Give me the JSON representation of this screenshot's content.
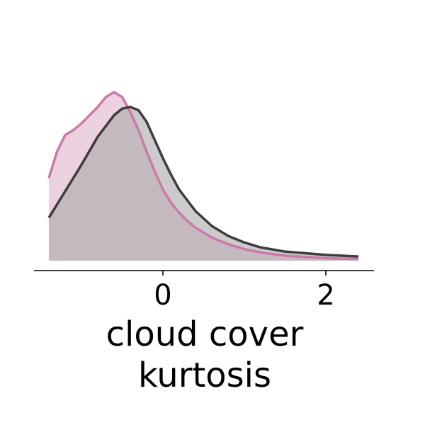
{
  "chart_data": {
    "type": "area",
    "xlabel": "cloud cover\nkurtosis",
    "ylabel": "",
    "xlim": [
      -1.6,
      2.6
    ],
    "ylim": [
      0,
      1.05
    ],
    "xticks": [
      0,
      2
    ],
    "xtick_labels": [
      "0",
      "2"
    ],
    "grid": false,
    "legend": "none",
    "series": [
      {
        "color": "#cc79a7",
        "fill": "#e0b3cb",
        "x": [
          -1.4,
          -1.3,
          -1.2,
          -1.1,
          -1.0,
          -0.9,
          -0.8,
          -0.7,
          -0.6,
          -0.5,
          -0.4,
          -0.3,
          -0.2,
          -0.1,
          0.0,
          0.1,
          0.2,
          0.3,
          0.4,
          0.6,
          0.8,
          1.0,
          1.2,
          1.5,
          2.0,
          2.4
        ],
        "y": [
          0.5,
          0.66,
          0.76,
          0.79,
          0.83,
          0.88,
          0.93,
          0.99,
          1.02,
          0.99,
          0.9,
          0.79,
          0.66,
          0.54,
          0.43,
          0.35,
          0.29,
          0.24,
          0.2,
          0.14,
          0.1,
          0.07,
          0.05,
          0.03,
          0.015,
          0.01
        ]
      },
      {
        "color": "#3d3d3d",
        "fill": "#a9a9a9",
        "x": [
          -1.4,
          -1.2,
          -1.0,
          -0.8,
          -0.6,
          -0.5,
          -0.4,
          -0.3,
          -0.2,
          -0.1,
          0.0,
          0.1,
          0.2,
          0.4,
          0.6,
          0.8,
          1.0,
          1.2,
          1.5,
          2.0,
          2.4
        ],
        "y": [
          0.26,
          0.42,
          0.58,
          0.75,
          0.88,
          0.92,
          0.93,
          0.91,
          0.84,
          0.73,
          0.62,
          0.52,
          0.43,
          0.3,
          0.21,
          0.15,
          0.11,
          0.08,
          0.055,
          0.035,
          0.025
        ]
      }
    ]
  }
}
